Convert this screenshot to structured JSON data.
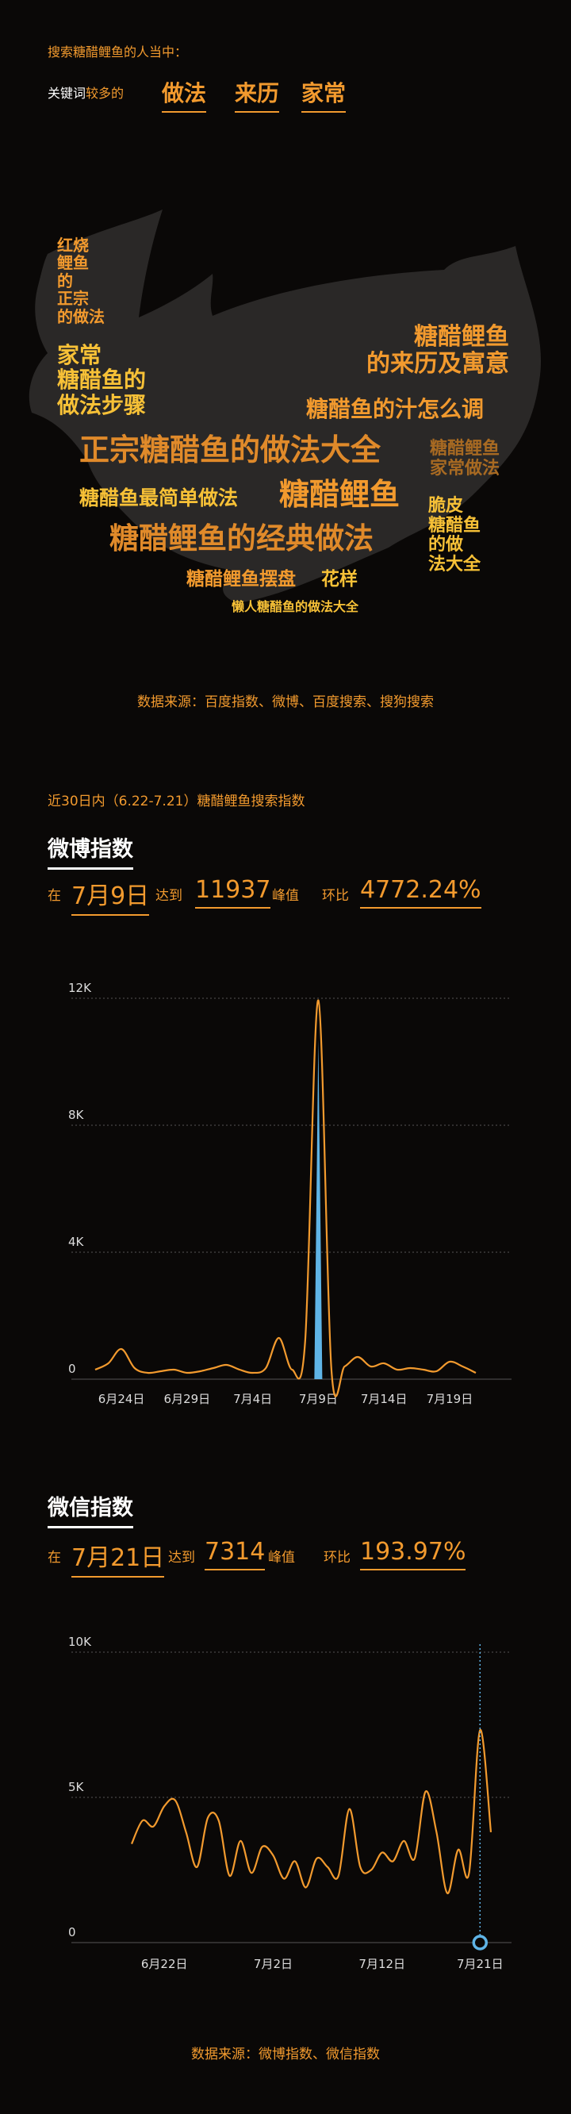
{
  "intro": {
    "search_line": "搜索糖醋鲤鱼的人当中：",
    "kw_prefix_1": "关键词",
    "kw_prefix_2": "较多的",
    "keywords": [
      "做法",
      "来历",
      "家常"
    ]
  },
  "word_cloud": {
    "words": [
      {
        "text": "红烧\n鲤鱼\n的\n正宗\n的做法",
        "color": "#f29a2e",
        "weight": "small"
      },
      {
        "text": "家常\n糖醋鱼的\n做法步骤",
        "color": "#f7c137",
        "weight": "medium"
      },
      {
        "text": "糖醋鲤鱼\n的来历及寓意",
        "color": "#f29a2e",
        "weight": "medium"
      },
      {
        "text": "糖醋鱼的汁怎么调",
        "color": "#f29a2e",
        "weight": "medium"
      },
      {
        "text": "正宗糖醋鱼的做法大全",
        "color": "#e08a2a",
        "weight": "large"
      },
      {
        "text": "糖醋鲤鱼\n家常做法",
        "color": "#a86a22",
        "weight": "small"
      },
      {
        "text": "糖醋鱼最简单做法",
        "color": "#f7c137",
        "weight": "medium"
      },
      {
        "text": "糖醋鲤鱼",
        "color": "#f29a2e",
        "weight": "large"
      },
      {
        "text": "脆皮\n糖醋鱼\n的做\n法大全",
        "color": "#f7c137",
        "weight": "small"
      },
      {
        "text": "糖醋鲤鱼的经典做法",
        "color": "#e08a2a",
        "weight": "large"
      },
      {
        "text": "糖醋鲤鱼摆盘",
        "color": "#f29a2e",
        "weight": "medium"
      },
      {
        "text": "花样",
        "color": "#f7c137",
        "weight": "medium"
      },
      {
        "text": "懒人糖醋鱼的做法大全",
        "color": "#f7c137",
        "weight": "tiny"
      }
    ]
  },
  "source_1": "数据来源：百度指数、微博、百度搜索、搜狗搜索",
  "period_line": "近30日内（6.22-7.21）糖醋鲤鱼搜索指数",
  "weibo": {
    "title": "微博指数",
    "at": "在",
    "date": "7月9日",
    "reach": "达到",
    "peak_value": "11937",
    "peak_label": "峰值",
    "ratio_label": "环比",
    "ratio": "4772.24%"
  },
  "wechat": {
    "title": "微信指数",
    "at": "在",
    "date": "7月21日",
    "reach": "达到",
    "peak_value": "7314",
    "peak_label": "峰值",
    "ratio_label": "环比",
    "ratio": "193.97%"
  },
  "source_2": "数据来源：微博指数、微信指数",
  "chart_data": [
    {
      "type": "line",
      "ylim": [
        0,
        12000
      ],
      "y_ticks": [
        "0",
        "4K",
        "8K",
        "12K"
      ],
      "x_ticks": [
        "6月24日",
        "6月29日",
        "7月4日",
        "7月9日",
        "7月14日",
        "7月19日"
      ],
      "grid": true,
      "colors": {
        "line": "#f29a2e",
        "peak_bar": "#5fb4e6",
        "grid": "#555555"
      },
      "series": [
        {
          "x": [
            "6月22日",
            "6月23日",
            "6月24日",
            "6月25日",
            "6月26日",
            "6月27日",
            "6月28日",
            "6月29日",
            "6月30日",
            "7月1日",
            "7月2日",
            "7月3日",
            "7月4日",
            "7月5日",
            "7月6日",
            "7月7日",
            "7月8日",
            "7月9日",
            "7月10日",
            "7月11日",
            "7月12日",
            "7月13日",
            "7月14日",
            "7月15日",
            "7月16日",
            "7月17日",
            "7月18日",
            "7月19日",
            "7月20日",
            "7月21日"
          ],
          "values": [
            300,
            500,
            950,
            350,
            200,
            250,
            300,
            200,
            250,
            350,
            450,
            300,
            200,
            350,
            1300,
            300,
            1200,
            11937,
            300,
            400,
            700,
            400,
            500,
            300,
            350,
            300,
            250,
            550,
            400,
            200
          ]
        }
      ],
      "peak_bar": {
        "x": "7月9日",
        "value": 10700
      }
    },
    {
      "type": "line",
      "ylim": [
        0,
        10000
      ],
      "y_ticks": [
        "0",
        "5K",
        "10K"
      ],
      "x_ticks": [
        "6月22日",
        "7月2日",
        "7月12日",
        "7月21日"
      ],
      "grid": true,
      "colors": {
        "line": "#f29a2e",
        "marker": "#5fb4e6",
        "grid": "#555555"
      },
      "series": [
        {
          "x": [
            "6月19日",
            "6月20日",
            "6月21日",
            "6月22日",
            "6月23日",
            "6月24日",
            "6月25日",
            "6月26日",
            "6月27日",
            "6月28日",
            "6月29日",
            "6月30日",
            "7月1日",
            "7月2日",
            "7月3日",
            "7月4日",
            "7月5日",
            "7月6日",
            "7月7日",
            "7月8日",
            "7月9日",
            "7月10日",
            "7月11日",
            "7月12日",
            "7月13日",
            "7月14日",
            "7月15日",
            "7月16日",
            "7月17日",
            "7月18日",
            "7月19日",
            "7月20日",
            "7月21日",
            "7月22日"
          ],
          "values": [
            3400,
            4200,
            4000,
            4700,
            4900,
            3800,
            2600,
            4300,
            4200,
            2300,
            3500,
            2400,
            3300,
            3000,
            2200,
            2800,
            1900,
            2900,
            2600,
            2300,
            4600,
            2600,
            2500,
            3100,
            2800,
            3500,
            2900,
            5200,
            3800,
            1700,
            3200,
            2400,
            7314,
            3800
          ]
        }
      ],
      "marker": {
        "x": "7月21日",
        "value": 0
      }
    }
  ]
}
